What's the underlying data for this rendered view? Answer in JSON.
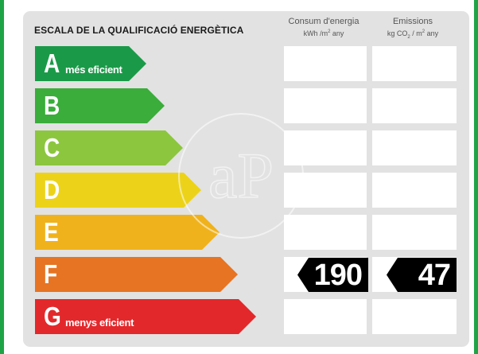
{
  "title": "ESCALA DE LA QUALIFICACIÓ ENERGÈTICA",
  "columns": {
    "consumption": {
      "title": "Consum d'energia",
      "unit_prefix": "kWh /m",
      "unit_sup": "2",
      "unit_suffix": " any"
    },
    "emissions": {
      "title": "Emissions",
      "unit_prefix": "kg CO",
      "unit_sub": "2",
      "unit_mid": " / m",
      "unit_sup": "2",
      "unit_suffix": " any"
    }
  },
  "ratings": [
    {
      "letter": "A",
      "label": "més eficient",
      "color": "#1a9a48"
    },
    {
      "letter": "B",
      "label": "",
      "color": "#3aad3b"
    },
    {
      "letter": "C",
      "label": "",
      "color": "#8cc63f"
    },
    {
      "letter": "D",
      "label": "",
      "color": "#ecd31a"
    },
    {
      "letter": "E",
      "label": "",
      "color": "#f0b21c"
    },
    {
      "letter": "F",
      "label": "",
      "color": "#e67423"
    },
    {
      "letter": "G",
      "label": "menys eficient",
      "color": "#e3282b"
    }
  ],
  "current": {
    "rating": "F",
    "consumption": "190",
    "emissions": "47"
  },
  "watermark": "aP"
}
